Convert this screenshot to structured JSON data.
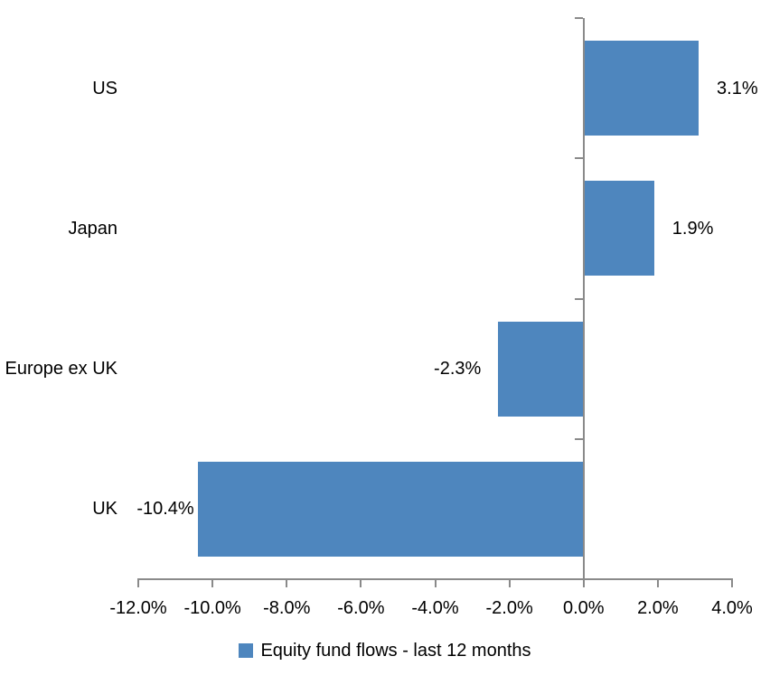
{
  "chart_data": {
    "type": "bar",
    "orientation": "horizontal",
    "title": "",
    "categories": [
      "US",
      "Japan",
      "Europe ex UK",
      "UK"
    ],
    "values": [
      3.1,
      1.9,
      -2.3,
      -10.4
    ],
    "value_labels": [
      "3.1%",
      "1.9%",
      "-2.3%",
      "-10.4%"
    ],
    "series_name": "Equity fund flows - last 12 months",
    "xlim": [
      -12,
      4
    ],
    "x_ticks": [
      -12,
      -10,
      -8,
      -6,
      -4,
      -2,
      0,
      2,
      4
    ],
    "x_tick_labels": [
      "-12.0%",
      "-10.0%",
      "-8.0%",
      "-6.0%",
      "-4.0%",
      "-2.0%",
      "0.0%",
      "2.0%",
      "4.0%"
    ],
    "grid": false,
    "legend_position": "bottom",
    "colors": {
      "bar": "#4E86BE",
      "axis": "#8A8A8A",
      "text": "#000000",
      "background": "#FFFFFF"
    }
  }
}
